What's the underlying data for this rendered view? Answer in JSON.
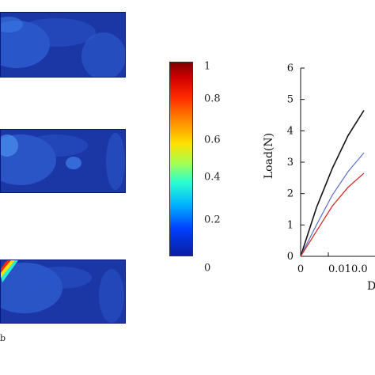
{
  "contour_panels": {
    "colors": {
      "background": "#1b37a6",
      "field_light": "#2f63d6",
      "field_mid": "#2a55c8",
      "edge": "#0a1a7a",
      "hot_band": [
        "#ff2a00",
        "#ffe100",
        "#2bffd0"
      ]
    },
    "bottom_mark": "b"
  },
  "colorbar": {
    "ticks": [
      "1",
      "0.8",
      "0.6",
      "0.4",
      "0.2",
      "0"
    ],
    "colormap": [
      "#7f0000",
      "#d10000",
      "#ff2a00",
      "#ff8800",
      "#ffe100",
      "#a6ff4f",
      "#2bffd0",
      "#00b0ff",
      "#0040ff",
      "#0a1ea0"
    ]
  },
  "chart_data": {
    "type": "line",
    "xlabel": "D",
    "ylabel": "Load(N)",
    "ylim": [
      0,
      6
    ],
    "y_ticks": [
      "0",
      "1",
      "2",
      "3",
      "4",
      "5",
      "6"
    ],
    "x_ticks": [
      "0",
      "0.010.0"
    ],
    "grid": false,
    "series": [
      {
        "color": "#111111",
        "x": [
          0,
          0.005,
          0.01,
          0.015,
          0.02
        ],
        "y": [
          0,
          1.55,
          2.8,
          3.85,
          4.65
        ]
      },
      {
        "color": "#5a73c8",
        "x": [
          0,
          0.005,
          0.01,
          0.015,
          0.02
        ],
        "y": [
          0,
          1.0,
          1.95,
          2.7,
          3.3
        ]
      },
      {
        "color": "#d02020",
        "x": [
          0,
          0.005,
          0.01,
          0.015,
          0.02
        ],
        "y": [
          0,
          0.8,
          1.6,
          2.2,
          2.65
        ]
      }
    ]
  }
}
